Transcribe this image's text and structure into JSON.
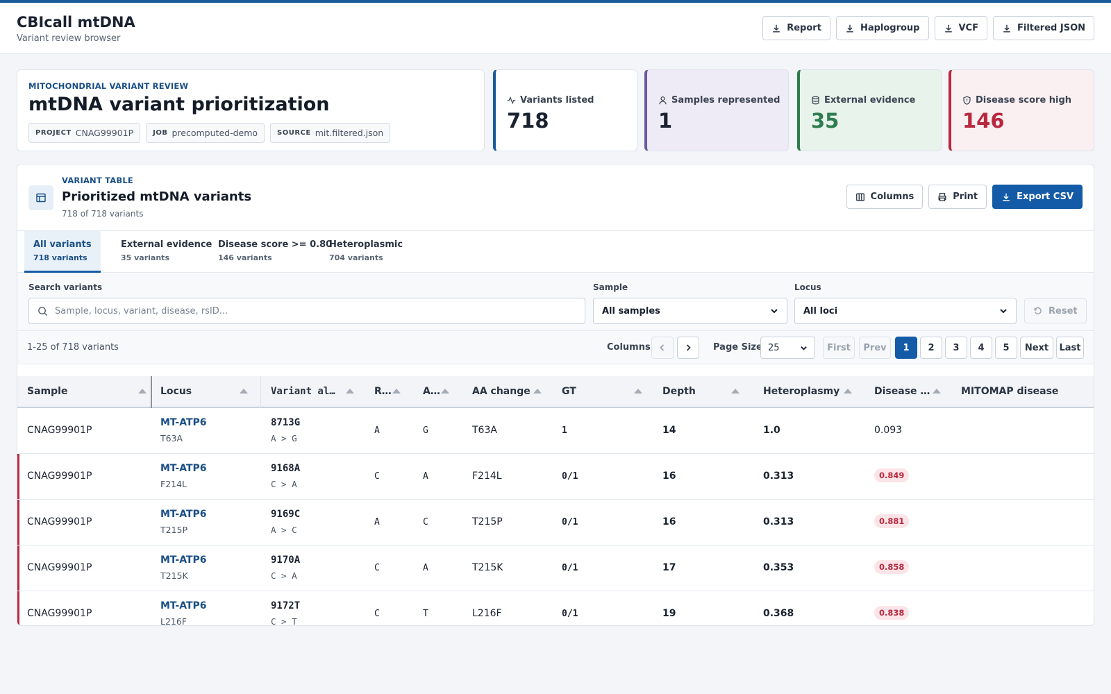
{
  "app": {
    "title": "CBIcall mtDNA",
    "subtitle": "Variant review browser"
  },
  "downloads": [
    "Report",
    "Haplogroup",
    "VCF",
    "Filtered JSON"
  ],
  "hero": {
    "eyebrow": "MITOCHONDRIAL VARIANT REVIEW",
    "title": "mtDNA variant prioritization",
    "chips": [
      {
        "key": "PROJECT",
        "value": "CNAG99901P"
      },
      {
        "key": "JOB",
        "value": "precomputed-demo"
      },
      {
        "key": "SOURCE",
        "value": "mit.filtered.json"
      }
    ]
  },
  "stats": [
    {
      "label": "Variants listed",
      "value": "718",
      "icon": "activity-icon",
      "accent": "#1a5c9a",
      "bg": "#ffffff",
      "color": "#1a2230"
    },
    {
      "label": "Samples represented",
      "value": "1",
      "icon": "user-icon",
      "accent": "#6a5a9e",
      "bg": "#eeeaf6",
      "color": "#1a2230"
    },
    {
      "label": "External evidence",
      "value": "35",
      "icon": "database-icon",
      "accent": "#2e7d4f",
      "bg": "#e8f3ec",
      "color": "#2e7d4f"
    },
    {
      "label": "Disease score high",
      "value": "146",
      "icon": "shield-icon",
      "accent": "#b8283e",
      "bg": "#fbf0f1",
      "color": "#b8283e"
    }
  ],
  "table_card": {
    "eyebrow": "VARIANT TABLE",
    "title": "Prioritized mtDNA variants",
    "subtitle": "718 of 718 variants",
    "actions": {
      "columns": "Columns",
      "print": "Print",
      "export": "Export CSV"
    }
  },
  "tabs": [
    {
      "label": "All variants",
      "count": "718 variants",
      "active": true
    },
    {
      "label": "External evidence",
      "count": "35 variants"
    },
    {
      "label": "Disease score >= 0.80",
      "count": "146 variants"
    },
    {
      "label": "Heteroplasmic",
      "count": "704 variants"
    }
  ],
  "filters": {
    "search_label": "Search variants",
    "search_placeholder": "Sample, locus, variant, disease, rsID...",
    "sample_label": "Sample",
    "sample_value": "All samples",
    "locus_label": "Locus",
    "locus_value": "All loci",
    "reset": "Reset"
  },
  "pager": {
    "range": "1-25 of 718 variants",
    "columns_label": "Columns",
    "page_size_label": "Page Size",
    "page_size": "25",
    "first": "First",
    "prev": "Prev",
    "pages": [
      "1",
      "2",
      "3",
      "4",
      "5"
    ],
    "current_page": "1",
    "next": "Next",
    "last": "Last"
  },
  "columns": [
    "Sample",
    "Locus",
    "Variant al…",
    "R…",
    "A…",
    "AA change",
    "GT",
    "Depth",
    "Heteroplasmy",
    "Disease …",
    "MITOMAP disease"
  ],
  "rows": [
    {
      "sample": "CNAG99901P",
      "locus": "MT-ATP6",
      "locus_sub": "T63A",
      "variant": "8713G",
      "change": "A > G",
      "ref": "A",
      "alt": "G",
      "aa": "T63A",
      "gt": "1",
      "depth": "14",
      "het": "1.0",
      "score": "0.093",
      "high": false
    },
    {
      "sample": "CNAG99901P",
      "locus": "MT-ATP6",
      "locus_sub": "F214L",
      "variant": "9168A",
      "change": "C > A",
      "ref": "C",
      "alt": "A",
      "aa": "F214L",
      "gt": "0/1",
      "depth": "16",
      "het": "0.313",
      "score": "0.849",
      "high": true
    },
    {
      "sample": "CNAG99901P",
      "locus": "MT-ATP6",
      "locus_sub": "T215P",
      "variant": "9169C",
      "change": "A > C",
      "ref": "A",
      "alt": "C",
      "aa": "T215P",
      "gt": "0/1",
      "depth": "16",
      "het": "0.313",
      "score": "0.881",
      "high": true
    },
    {
      "sample": "CNAG99901P",
      "locus": "MT-ATP6",
      "locus_sub": "T215K",
      "variant": "9170A",
      "change": "C > A",
      "ref": "C",
      "alt": "A",
      "aa": "T215K",
      "gt": "0/1",
      "depth": "17",
      "het": "0.353",
      "score": "0.858",
      "high": true
    },
    {
      "sample": "CNAG99901P",
      "locus": "MT-ATP6",
      "locus_sub": "L216F",
      "variant": "9172T",
      "change": "C > T",
      "ref": "C",
      "alt": "T",
      "aa": "L216F",
      "gt": "0/1",
      "depth": "19",
      "het": "0.368",
      "score": "0.838",
      "high": true
    }
  ]
}
